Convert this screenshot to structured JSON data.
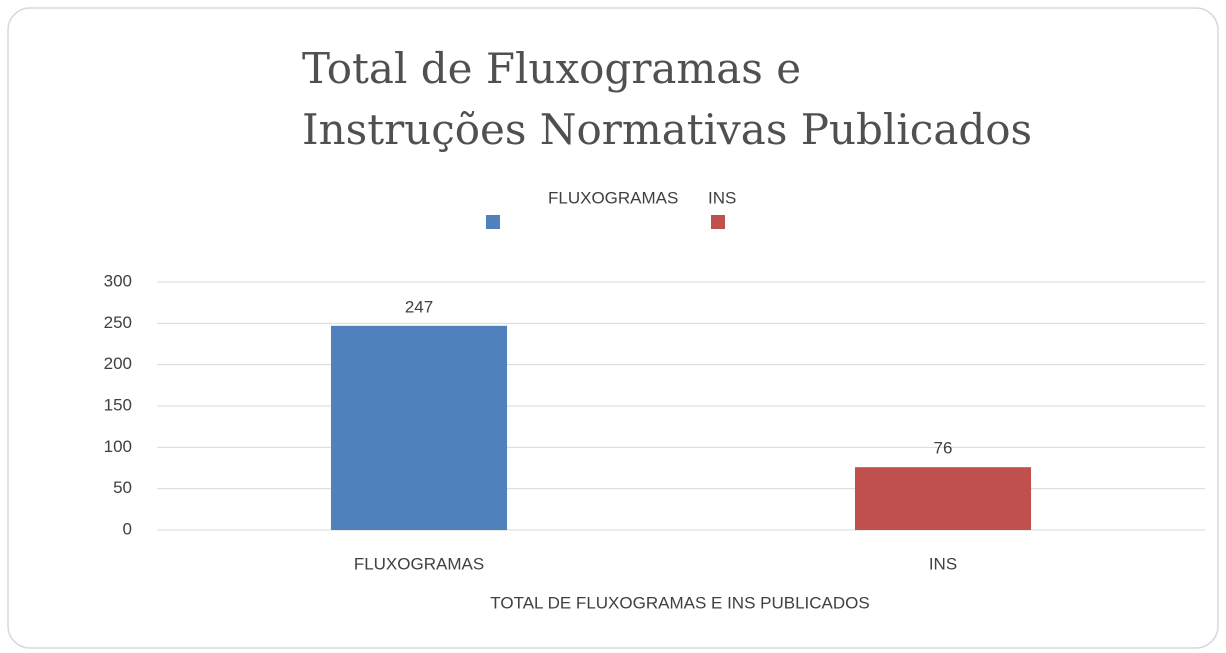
{
  "chart_data": {
    "type": "bar",
    "title": [
      "Total de Fluxogramas e",
      "Instruções Normativas Publicados"
    ],
    "categories": [
      "FLUXOGRAMAS",
      "INS"
    ],
    "series": [
      {
        "name": "FLUXOGRAMAS",
        "color": "#4f81bd"
      },
      {
        "name": "INS",
        "color": "#c0504d"
      }
    ],
    "values": [
      247,
      76
    ],
    "x_label": "TOTAL DE FLUXOGRAMAS E INS PUBLICADOS",
    "ylim": [
      0,
      300
    ],
    "yticks": [
      0,
      50,
      100,
      150,
      200,
      250,
      300
    ],
    "grid": true,
    "legend": "top"
  }
}
